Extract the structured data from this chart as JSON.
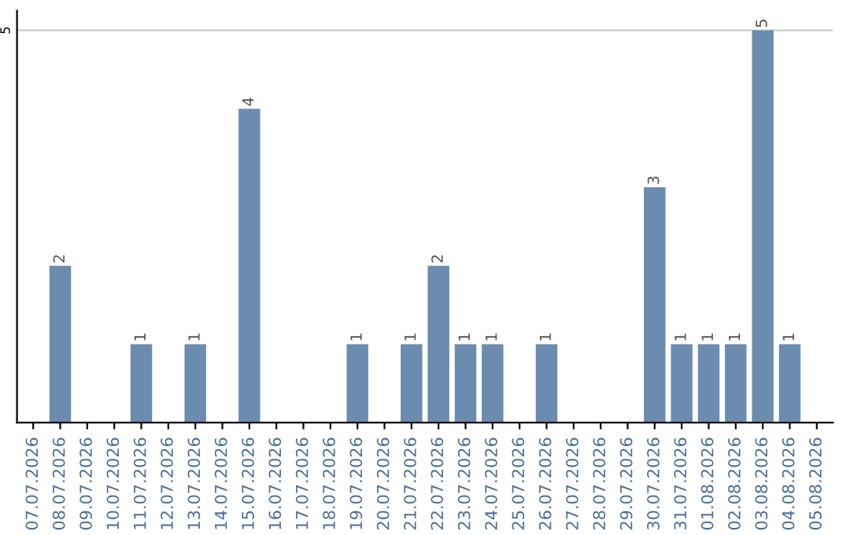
{
  "chart_data": {
    "type": "bar",
    "categories": [
      "07.07.2026",
      "08.07.2026",
      "09.07.2026",
      "10.07.2026",
      "11.07.2026",
      "12.07.2026",
      "13.07.2026",
      "14.07.2026",
      "15.07.2026",
      "16.07.2026",
      "17.07.2026",
      "18.07.2026",
      "19.07.2026",
      "20.07.2026",
      "21.07.2026",
      "22.07.2026",
      "23.07.2026",
      "24.07.2026",
      "25.07.2026",
      "26.07.2026",
      "27.07.2026",
      "28.07.2026",
      "29.07.2026",
      "30.07.2026",
      "31.07.2026",
      "01.08.2026",
      "02.08.2026",
      "03.08.2026",
      "04.08.2026",
      "05.08.2026"
    ],
    "values": [
      0,
      2,
      0,
      0,
      1,
      0,
      1,
      0,
      4,
      0,
      0,
      0,
      1,
      0,
      1,
      2,
      1,
      1,
      0,
      1,
      0,
      0,
      0,
      3,
      1,
      1,
      1,
      5,
      1,
      0
    ],
    "value_labels": [
      null,
      "2",
      null,
      null,
      "1",
      null,
      "1",
      null,
      "4",
      null,
      null,
      null,
      "1",
      null,
      "1",
      "2",
      "1",
      "1",
      null,
      "1",
      null,
      null,
      null,
      "3",
      "1",
      "1",
      "1",
      "5",
      "1",
      null
    ],
    "color": "#6b8cae",
    "ylim": [
      0,
      5.25
    ],
    "yticks": [
      5
    ],
    "grid": "y"
  }
}
